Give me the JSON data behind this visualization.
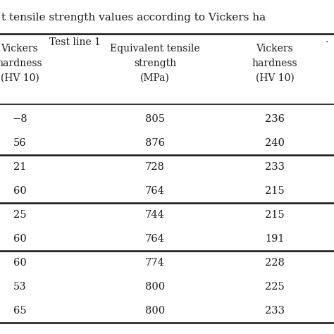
{
  "title": "t tensile strength values according to Vickers ha",
  "section_header": "Test line 1",
  "col_headers": [
    [
      "Vickers",
      "hardness",
      "(HV 10)"
    ],
    [
      "Equivalent tensile",
      "strength",
      "(MPa)"
    ],
    [
      "Vickers",
      "hardness",
      "(HV 10)"
    ]
  ],
  "groups": [
    [
      [
        "−8",
        "805",
        "236"
      ],
      [
        "56",
        "876",
        "240"
      ]
    ],
    [
      [
        "21",
        "728",
        "233"
      ],
      [
        "60",
        "764",
        "215"
      ]
    ],
    [
      [
        "25",
        "744",
        "215"
      ],
      [
        "60",
        "764",
        "191"
      ]
    ],
    [
      [
        "60",
        "774",
        "228"
      ],
      [
        "53",
        "800",
        "225"
      ],
      [
        "65",
        "800",
        "233"
      ]
    ]
  ],
  "bg_color": "#ffffff",
  "text_color": "#1a1a1a",
  "line_color": "#111111",
  "title_fontsize": 11,
  "header_fontsize": 10,
  "data_fontsize": 10.5
}
